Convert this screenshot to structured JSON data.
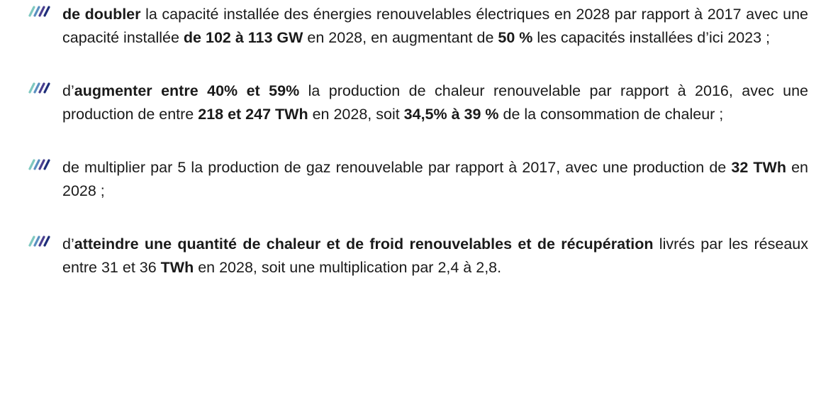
{
  "items": [
    {
      "segments": [
        {
          "text": "de doubler",
          "bold": true
        },
        {
          "text": " la capacité installée des énergies renouvelables électriques en 2028 par rapport à 2017 avec une capacité installée ",
          "bold": false
        },
        {
          "text": "de 102 à 113 GW",
          "bold": true
        },
        {
          "text": " en 2028, en augmentant de ",
          "bold": false
        },
        {
          "text": "50 %",
          "bold": true
        },
        {
          "text": " les capacités installées d’ici 2023 ;",
          "bold": false
        }
      ]
    },
    {
      "segments": [
        {
          "text": "d’",
          "bold": false
        },
        {
          "text": "augmenter entre 40% et 59%",
          "bold": true
        },
        {
          "text": " la production de chaleur renouvelable par rapport à 2016, avec une production de entre ",
          "bold": false
        },
        {
          "text": "218 et 247 TWh",
          "bold": true
        },
        {
          "text": " en 2028, soit ",
          "bold": false
        },
        {
          "text": "34,5% à 39 %",
          "bold": true
        },
        {
          "text": " de la consommation de chaleur ;",
          "bold": false
        }
      ]
    },
    {
      "segments": [
        {
          "text": "de multiplier par 5 la production de gaz renouvelable par rapport à 2017, avec une production de ",
          "bold": false
        },
        {
          "text": "32 TWh",
          "bold": true
        },
        {
          "text": " en 2028 ;",
          "bold": false
        }
      ]
    },
    {
      "segments": [
        {
          "text": "d’",
          "bold": false
        },
        {
          "text": "atteindre une quantité de chaleur et de froid renouvelables et de récupération",
          "bold": true
        },
        {
          "text": " livrés par les réseaux entre 31 et 36 ",
          "bold": false
        },
        {
          "text": "TWh",
          "bold": true
        },
        {
          "text": " en 2028, soit une multiplication par 2,4 à 2,8.",
          "bold": false
        }
      ]
    }
  ]
}
